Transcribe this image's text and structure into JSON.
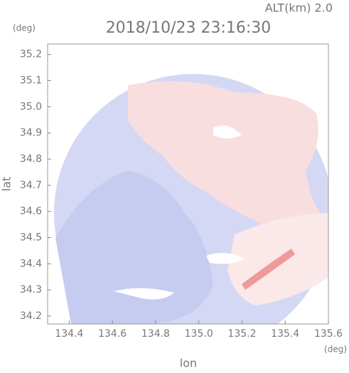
{
  "chart_data": {
    "type": "heatmap",
    "title": "2018/10/23 23:16:30",
    "altitude_label": "ALT(km) 2.0",
    "y_unit": "(deg)",
    "x_unit": "(deg)",
    "xlabel": "lon",
    "ylabel": "lat",
    "xlim": [
      134.3,
      135.6
    ],
    "ylim": [
      34.17,
      35.24
    ],
    "xticks": [
      134.4,
      134.6,
      134.8,
      {
        "value": 135.0,
        "label": "135.0"
      },
      135.2,
      135.4,
      135.6
    ],
    "yticks": [
      34.2,
      34.3,
      34.4,
      34.5,
      34.6,
      34.7,
      34.8,
      34.9,
      {
        "value": 35.0,
        "label": "35.0"
      },
      35.1,
      35.2
    ]
  }
}
